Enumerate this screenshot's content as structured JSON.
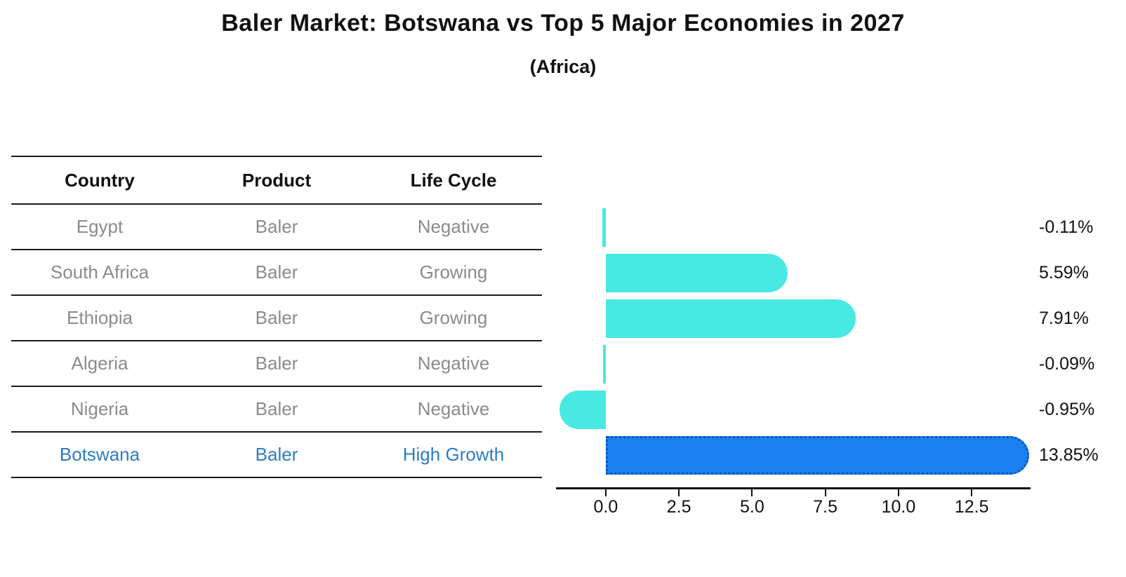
{
  "header": {
    "title": "Baler Market: Botswana vs Top 5 Major Economies in 2027",
    "subtitle": "(Africa)"
  },
  "table": {
    "headers": [
      "Country",
      "Product",
      "Life Cycle"
    ],
    "rows": [
      {
        "country": "Egypt",
        "product": "Baler",
        "life_cycle": "Negative",
        "highlight": false
      },
      {
        "country": "South Africa",
        "product": "Baler",
        "life_cycle": "Growing",
        "highlight": false
      },
      {
        "country": "Ethiopia",
        "product": "Baler",
        "life_cycle": "Growing",
        "highlight": false
      },
      {
        "country": "Algeria",
        "product": "Baler",
        "life_cycle": "Negative",
        "highlight": false
      },
      {
        "country": "Nigeria",
        "product": "Baler",
        "life_cycle": "Negative",
        "highlight": false
      },
      {
        "country": "Botswana",
        "product": "Baler",
        "life_cycle": "High Growth",
        "highlight": true
      }
    ]
  },
  "chart_data": {
    "type": "bar",
    "orientation": "horizontal",
    "title": "Baler Market: Botswana vs Top 5 Major Economies in 2027",
    "subtitle": "(Africa)",
    "categories": [
      "Egypt",
      "South Africa",
      "Ethiopia",
      "Algeria",
      "Nigeria",
      "Botswana"
    ],
    "values": [
      -0.11,
      5.59,
      7.91,
      -0.09,
      -0.95,
      13.85
    ],
    "value_labels": [
      "-0.11%",
      "5.59%",
      "7.91%",
      "-0.09%",
      "-0.95%",
      "13.85%"
    ],
    "highlight_category": "Botswana",
    "highlight_index": 5,
    "xlim": [
      -1.7,
      14.51
    ],
    "xticks": [
      0.0,
      2.5,
      5.0,
      7.5,
      10.0,
      12.5
    ],
    "xtick_labels": [
      "0.0",
      "2.5",
      "5.0",
      "7.5",
      "10.0",
      "12.5"
    ],
    "grid": false,
    "legend": false
  },
  "colors": {
    "bar_default": "#48e9e3",
    "bar_highlight": "#1a80f0",
    "bar_highlight_edge": "#0c55b8",
    "axis": "#111111",
    "text_primary": "#111111",
    "text_muted": "#8b8b8b",
    "text_highlight": "#2d7bc8"
  }
}
